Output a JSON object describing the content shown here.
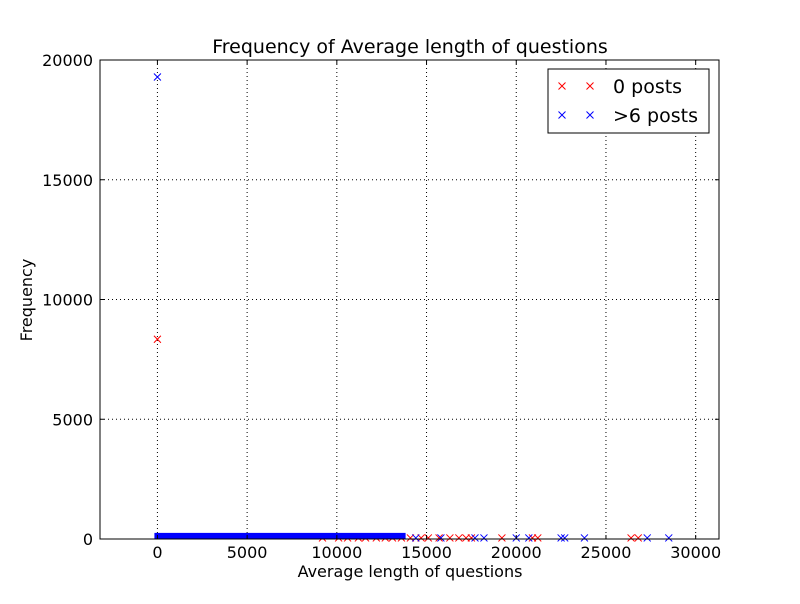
{
  "chart_data": {
    "type": "scatter",
    "title": "Frequency of Average length of questions",
    "xlabel": "Average length of questions",
    "ylabel": "Frequency",
    "xlim": [
      -3200,
      31300
    ],
    "ylim": [
      0,
      20000
    ],
    "xticks": [
      0,
      5000,
      10000,
      15000,
      20000,
      25000,
      30000
    ],
    "xtick_labels": [
      "0",
      "5000",
      "10000",
      "15000",
      "20000",
      "25000",
      "30000"
    ],
    "yticks": [
      0,
      5000,
      10000,
      15000,
      20000
    ],
    "ytick_labels": [
      "0",
      "5000",
      "10000",
      "15000",
      "20000"
    ],
    "grid": true,
    "legend_position": "top-right",
    "marker": "x",
    "series": [
      {
        "name": "0 posts",
        "color": "#ff0000",
        "points": [
          [
            0,
            8300
          ],
          [
            9200,
            2
          ],
          [
            10100,
            2
          ],
          [
            10600,
            2
          ],
          [
            11200,
            2
          ],
          [
            11600,
            2
          ],
          [
            12200,
            2
          ],
          [
            12700,
            2
          ],
          [
            13100,
            2
          ],
          [
            13600,
            2
          ],
          [
            14100,
            2
          ],
          [
            14700,
            2
          ],
          [
            15100,
            2
          ],
          [
            15700,
            2
          ],
          [
            16300,
            2
          ],
          [
            16800,
            2
          ],
          [
            17200,
            2
          ],
          [
            17500,
            2
          ],
          [
            19200,
            2
          ],
          [
            20900,
            2
          ],
          [
            21200,
            2
          ],
          [
            26400,
            2
          ],
          [
            26800,
            2
          ]
        ]
      },
      {
        "name": ">6 posts",
        "color": "#0000ff",
        "points": [
          [
            0,
            19250
          ],
          [
            14400,
            2
          ],
          [
            15800,
            2
          ],
          [
            17700,
            2
          ],
          [
            18200,
            2
          ],
          [
            20000,
            2
          ],
          [
            20700,
            2
          ],
          [
            22500,
            2
          ],
          [
            22700,
            2
          ],
          [
            23800,
            2
          ],
          [
            27300,
            2
          ],
          [
            28500,
            2
          ]
        ],
        "dense_band": {
          "x_from": 0,
          "x_to": 14000,
          "y_from": 0,
          "y_to": 130
        }
      }
    ]
  }
}
